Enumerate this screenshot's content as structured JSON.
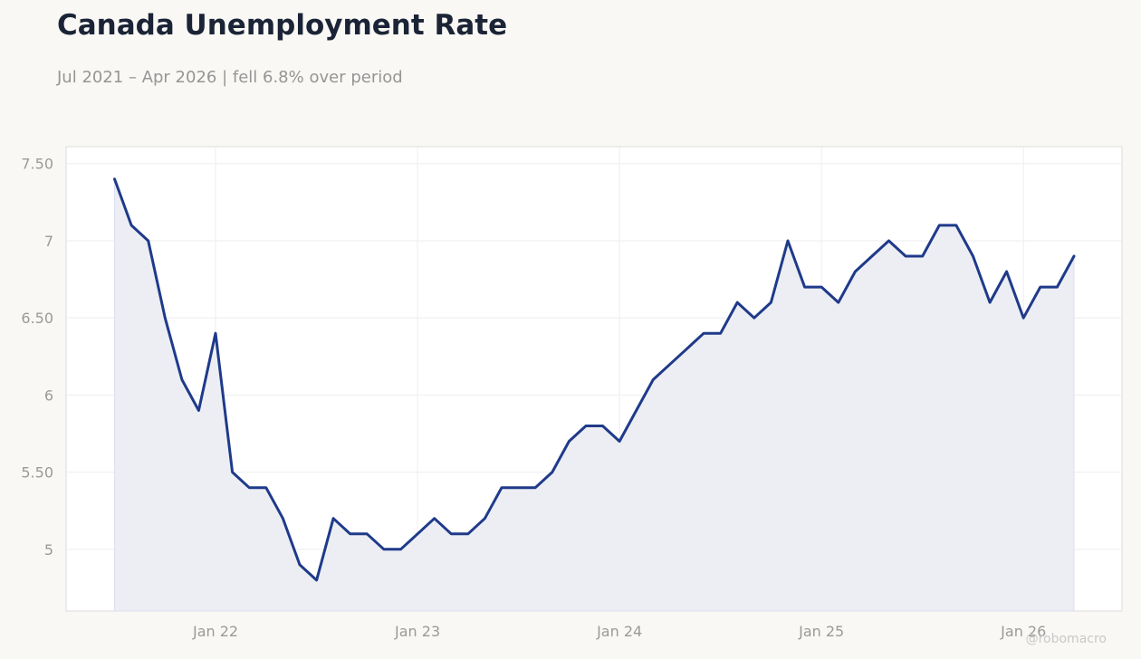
{
  "chart_data": {
    "type": "area",
    "title": "Canada Unemployment Rate",
    "subtitle": "Jul 2021 – Apr 2026 | fell 6.8% over period",
    "xlabel": "",
    "ylabel": "",
    "ylim": [
      4.6,
      7.61
    ],
    "y_ticks": [
      {
        "value": 7.5,
        "label": "7.50"
      },
      {
        "value": 7.0,
        "label": "7"
      },
      {
        "value": 6.5,
        "label": "6.50"
      },
      {
        "value": 6.0,
        "label": "6"
      },
      {
        "value": 5.5,
        "label": "5.50"
      },
      {
        "value": 5.0,
        "label": "5"
      }
    ],
    "x_ticks": [
      {
        "value": "2022-01",
        "label": "Jan 22"
      },
      {
        "value": "2023-01",
        "label": "Jan 23"
      },
      {
        "value": "2024-01",
        "label": "Jan 24"
      },
      {
        "value": "2025-01",
        "label": "Jan 25"
      },
      {
        "value": "2026-01",
        "label": "Jan 26"
      }
    ],
    "grid": true,
    "colors": {
      "line": "#1f3a8a",
      "fill": "#eceef4",
      "grid": "#eeeeee",
      "frame": "#dddddd"
    },
    "series": [
      {
        "x": [
          "2021-07",
          "2021-08",
          "2021-09",
          "2021-10",
          "2021-11",
          "2021-12",
          "2022-01",
          "2022-02",
          "2022-03",
          "2022-04",
          "2022-05",
          "2022-06",
          "2022-07",
          "2022-08",
          "2022-09",
          "2022-10",
          "2022-11",
          "2022-12",
          "2023-01",
          "2023-02",
          "2023-03",
          "2023-04",
          "2023-05",
          "2023-06",
          "2023-07",
          "2023-08",
          "2023-09",
          "2023-10",
          "2023-11",
          "2023-12",
          "2024-01",
          "2024-02",
          "2024-03",
          "2024-04",
          "2024-05",
          "2024-06",
          "2024-07",
          "2024-08",
          "2024-09",
          "2024-10",
          "2024-11",
          "2024-12",
          "2025-01",
          "2025-02",
          "2025-03",
          "2025-04",
          "2025-05",
          "2025-06",
          "2025-07",
          "2025-08",
          "2025-09",
          "2025-10",
          "2025-11",
          "2025-12",
          "2026-01",
          "2026-02",
          "2026-03",
          "2026-04"
        ],
        "values": [
          7.4,
          7.1,
          7.0,
          6.5,
          6.1,
          5.9,
          6.4,
          5.5,
          5.4,
          5.4,
          5.2,
          4.9,
          4.8,
          5.2,
          5.1,
          5.1,
          5.0,
          5.0,
          5.1,
          5.2,
          5.1,
          5.1,
          5.2,
          5.4,
          5.4,
          5.4,
          5.5,
          5.7,
          5.8,
          5.8,
          5.7,
          5.9,
          6.1,
          6.2,
          6.3,
          6.4,
          6.4,
          6.6,
          6.5,
          6.6,
          7.0,
          6.7,
          6.7,
          6.6,
          6.8,
          6.9,
          7.0,
          6.9,
          6.9,
          7.1,
          7.1,
          6.9,
          6.6,
          6.8,
          6.5,
          6.7,
          6.7,
          6.9
        ]
      }
    ]
  },
  "watermark": "@robomacro"
}
